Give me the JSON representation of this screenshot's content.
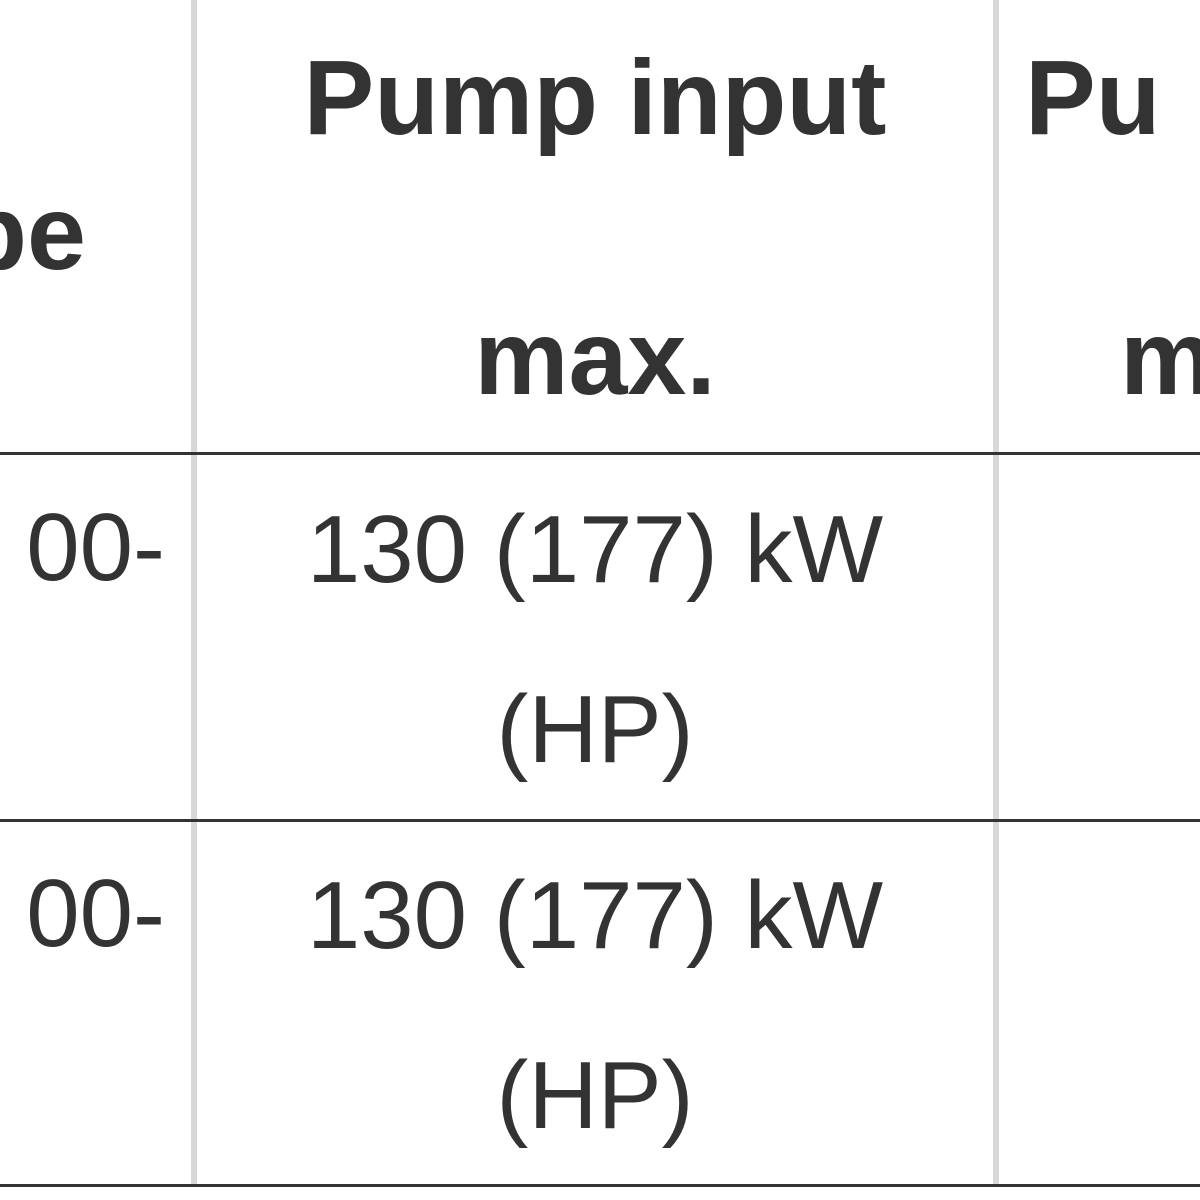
{
  "table": {
    "header": [
      "pe",
      [
        "Pump input",
        "max."
      ],
      [
        "Pu",
        "m"
      ]
    ],
    "rows": [
      [
        "00-",
        "130 (177) kW (HP)"
      ],
      [
        "00-",
        "130 (177) kW (HP)"
      ]
    ]
  }
}
